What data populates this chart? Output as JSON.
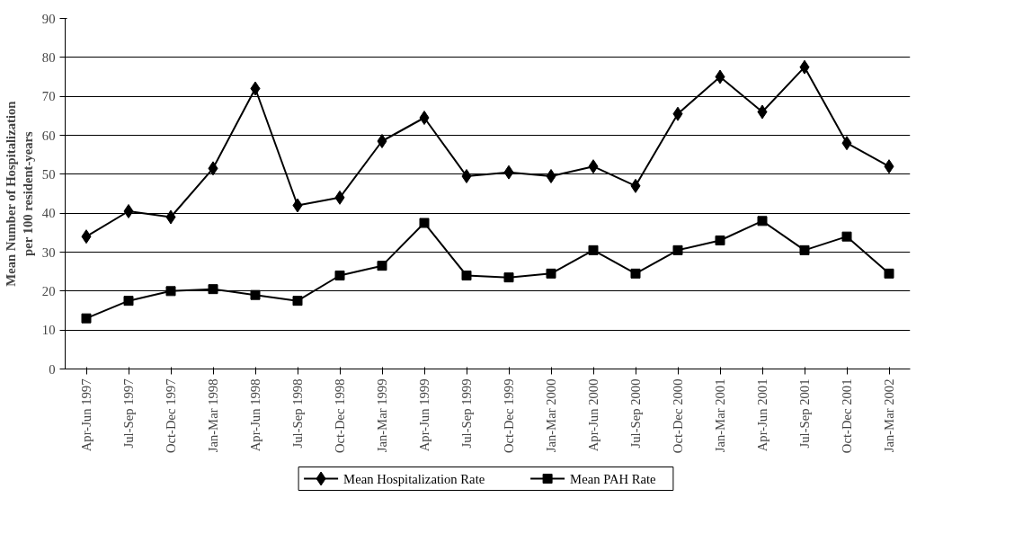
{
  "chart_data": {
    "type": "line",
    "ylabel": "Mean Number of Hospitalization\nper 100 resident-years",
    "categories": [
      "Apr-Jun 1997",
      "Jul-Sep 1997",
      "Oct-Dec 1997",
      "Jan-Mar 1998",
      "Apr-Jun 1998",
      "Jul-Sep 1998",
      "Oct-Dec 1998",
      "Jan-Mar 1999",
      "Apr-Jun 1999",
      "Jul-Sep 1999",
      "Oct-Dec 1999",
      "Jan-Mar 2000",
      "Apr-Jun 2000",
      "Jul-Sep 2000",
      "Oct-Dec 2000",
      "Jan-Mar 2001",
      "Apr-Jun 2001",
      "Jul-Sep 2001",
      "Oct-Dec 2001",
      "Jan-Mar 2002"
    ],
    "series": [
      {
        "name": "Mean Hospitalization Rate",
        "color": "#000000",
        "marker": "diamond",
        "values": [
          34,
          40.5,
          39,
          51.5,
          72,
          42,
          44,
          58.5,
          64.5,
          49.5,
          50.5,
          49.5,
          52,
          47,
          65.5,
          75,
          66,
          77.5,
          58,
          52
        ]
      },
      {
        "name": "Mean PAH Rate",
        "color": "#000000",
        "marker": "square",
        "values": [
          13,
          17.5,
          20,
          20.5,
          19,
          17.5,
          24,
          26.5,
          37.5,
          24,
          23.5,
          24.5,
          30.5,
          24.5,
          30.5,
          33,
          38,
          30.5,
          34,
          24.5
        ]
      }
    ],
    "ylim": [
      0,
      90
    ],
    "yticks": [
      0,
      10,
      20,
      30,
      40,
      50,
      60,
      70,
      80,
      90
    ],
    "grid": "y",
    "legend": "bottom",
    "line_style": "solid"
  }
}
